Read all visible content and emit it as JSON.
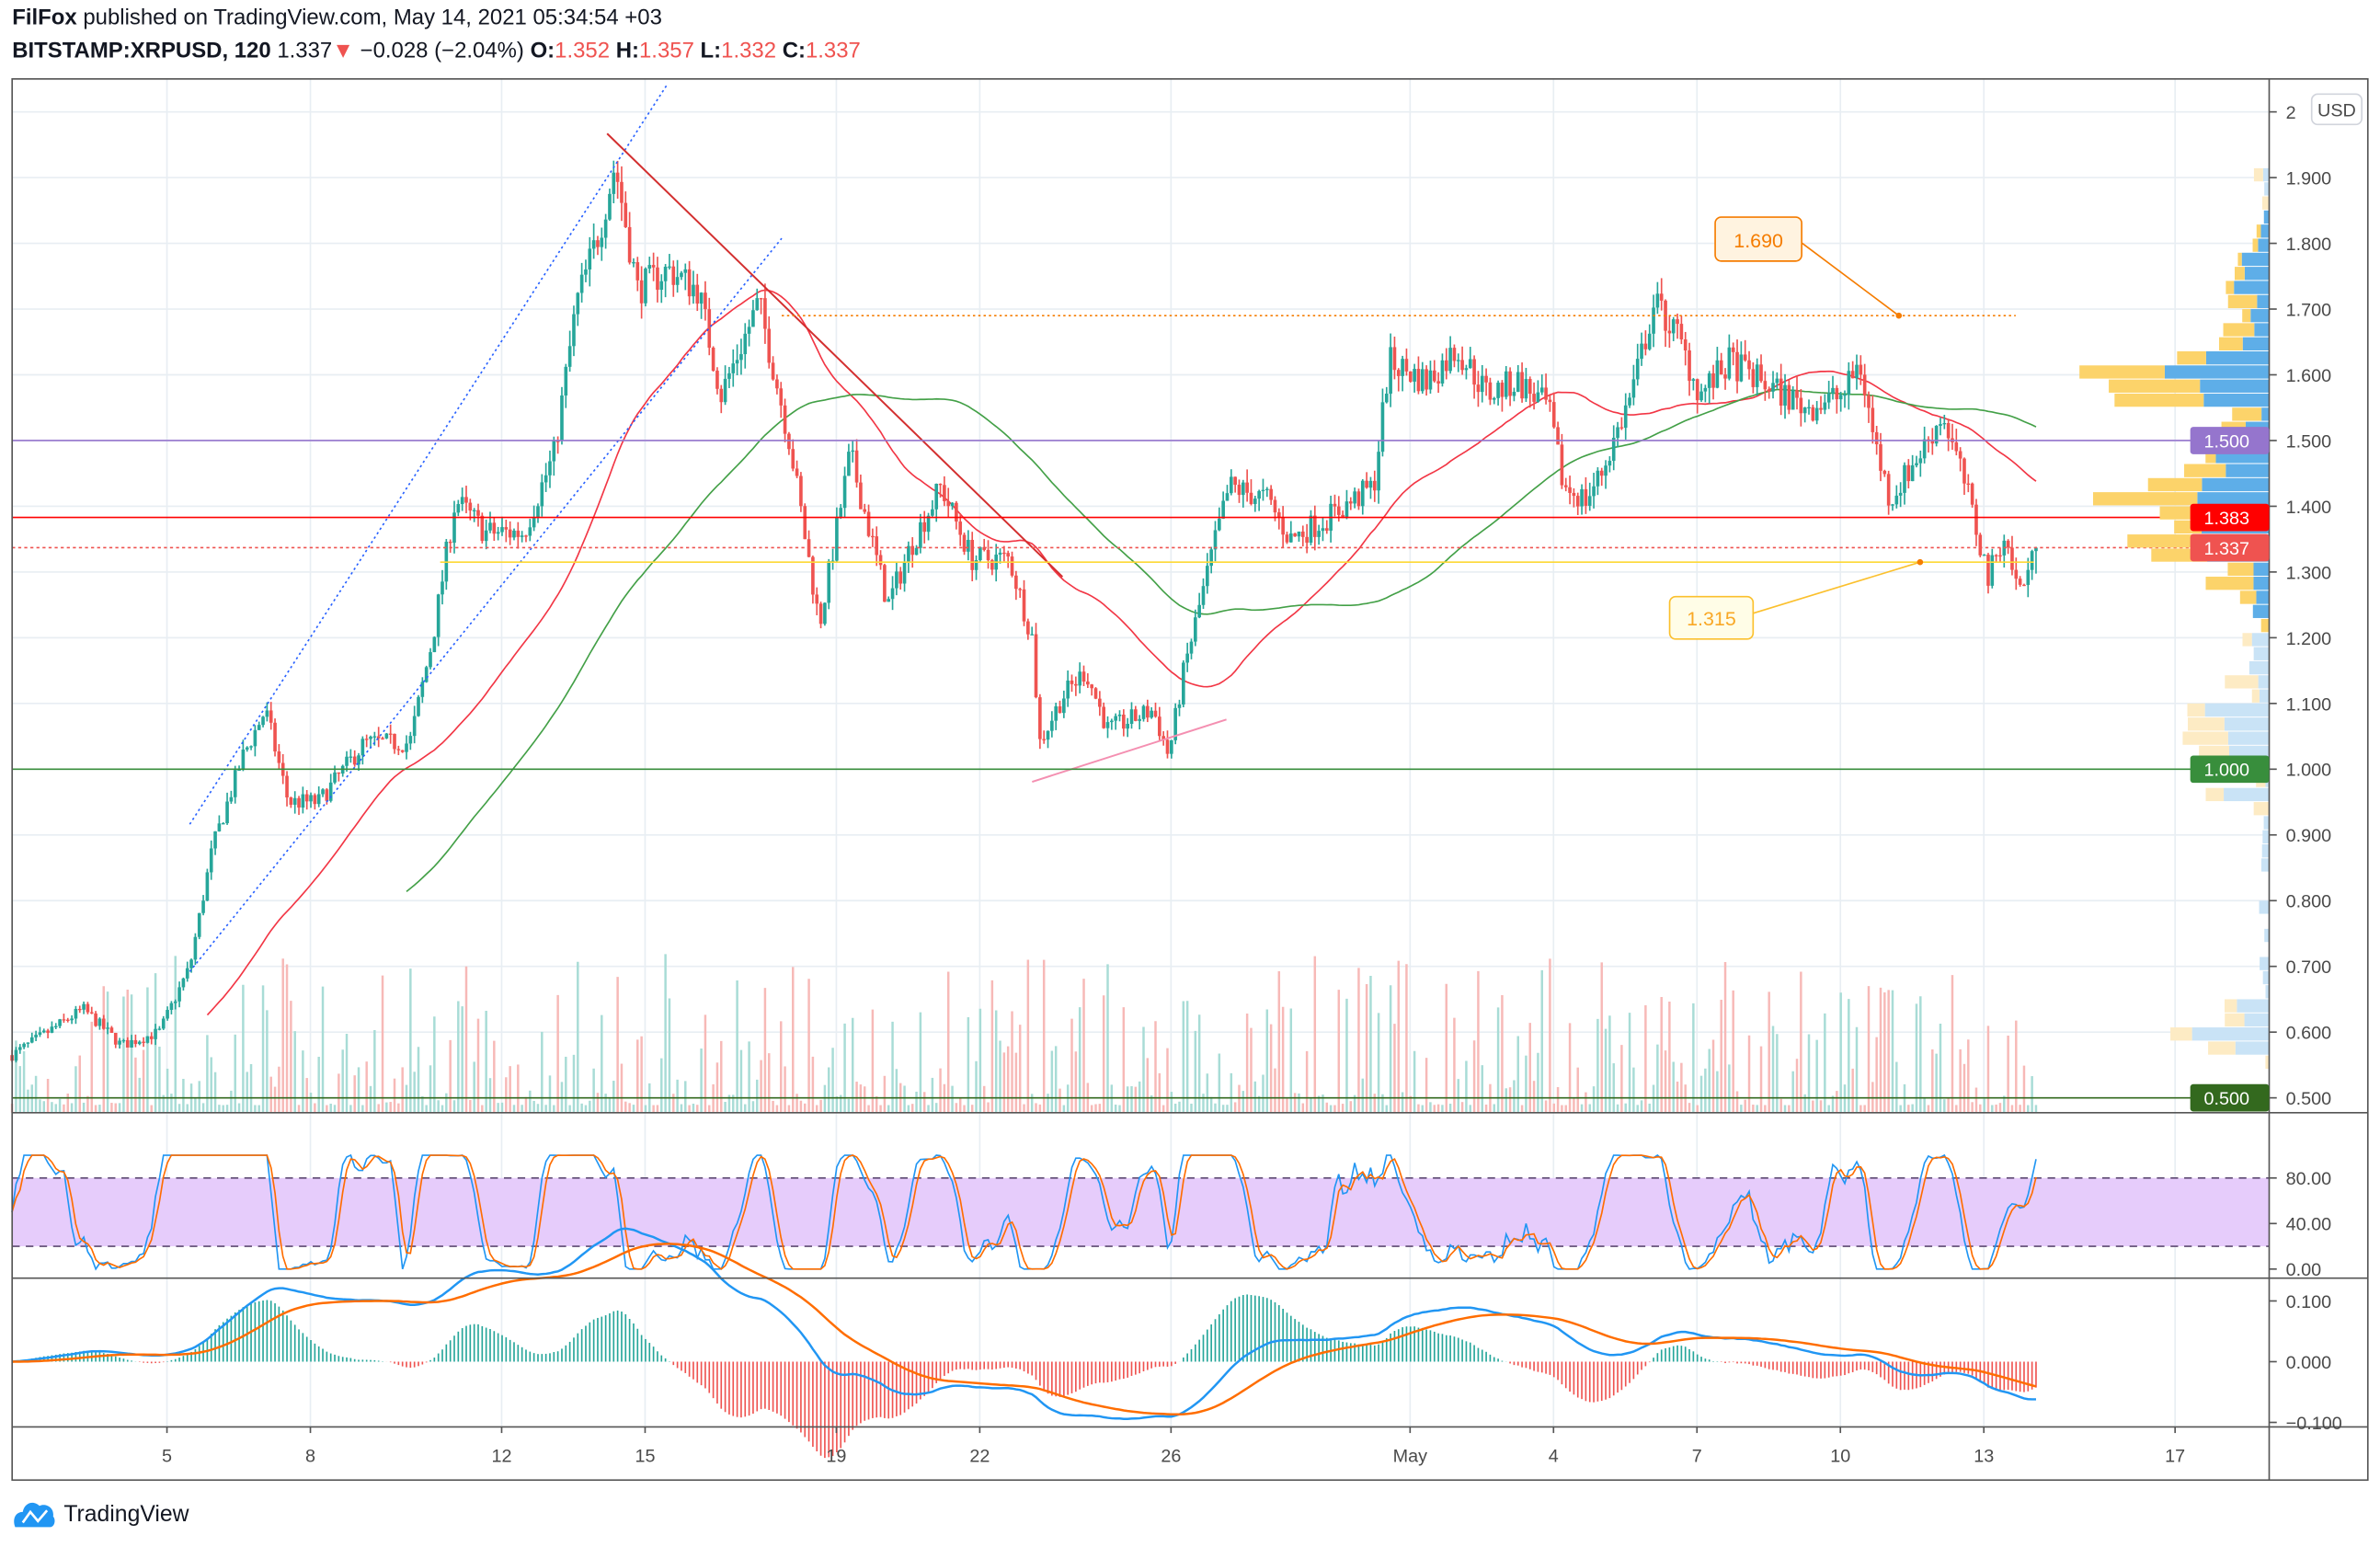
{
  "header": {
    "author": "FilFox",
    "published_text": "published on TradingView.com, May 14, 2021 05:34:54 +03",
    "symbol": "BITSTAMP:XRPUSD, 120",
    "last": "1.337",
    "change": "−0.028 (−2.04%)",
    "o_label": "O:",
    "o": "1.352",
    "h_label": "H:",
    "h": "1.357",
    "l_label": "L:",
    "l": "1.332",
    "c_label": "C:",
    "c": "1.337"
  },
  "currency_badge": "USD",
  "brand": "TradingView",
  "colors": {
    "up": "#26a69a",
    "down": "#ef5350",
    "accent": "#2962ff"
  },
  "chart_data": {
    "type": "candlestick",
    "title": "BITSTAMP:XRPUSD, 120",
    "x_unit": "day index (Apr 1 = 1, May 1 = 31)",
    "price_path": [
      [
        1.76,
        0.565
      ],
      [
        3.25,
        0.635
      ],
      [
        4.05,
        0.58
      ],
      [
        4.84,
        0.6
      ],
      [
        5.48,
        0.7
      ],
      [
        5.95,
        0.88
      ],
      [
        6.59,
        1.02
      ],
      [
        7.06,
        1.09
      ],
      [
        7.54,
        0.95
      ],
      [
        8.17,
        0.95
      ],
      [
        9.13,
        1.04
      ],
      [
        10.08,
        1.04
      ],
      [
        10.56,
        1.2
      ],
      [
        11.03,
        1.41
      ],
      [
        11.67,
        1.36
      ],
      [
        12.46,
        1.36
      ],
      [
        13.1,
        1.48
      ],
      [
        13.57,
        1.71
      ],
      [
        14.05,
        1.82
      ],
      [
        14.37,
        1.92
      ],
      [
        14.84,
        1.73
      ],
      [
        15.48,
        1.76
      ],
      [
        16.11,
        1.73
      ],
      [
        16.59,
        1.57
      ],
      [
        17.38,
        1.71
      ],
      [
        18.02,
        1.5
      ],
      [
        18.33,
        1.36
      ],
      [
        18.65,
        1.22
      ],
      [
        19.29,
        1.48
      ],
      [
        20.08,
        1.25
      ],
      [
        20.56,
        1.34
      ],
      [
        21.19,
        1.43
      ],
      [
        21.83,
        1.32
      ],
      [
        22.62,
        1.32
      ],
      [
        23.1,
        1.2
      ],
      [
        23.25,
        1.04
      ],
      [
        23.73,
        1.11
      ],
      [
        24.21,
        1.15
      ],
      [
        24.68,
        1.06
      ],
      [
        25.63,
        1.09
      ],
      [
        25.95,
        1.02
      ],
      [
        26.27,
        1.15
      ],
      [
        26.9,
        1.34
      ],
      [
        27.22,
        1.43
      ],
      [
        28.02,
        1.41
      ],
      [
        28.49,
        1.35
      ],
      [
        29.44,
        1.39
      ],
      [
        30.24,
        1.43
      ],
      [
        30.56,
        1.62
      ],
      [
        31.35,
        1.59
      ],
      [
        31.98,
        1.64
      ],
      [
        32.62,
        1.57
      ],
      [
        33.25,
        1.59
      ],
      [
        33.89,
        1.55
      ],
      [
        34.21,
        1.43
      ],
      [
        34.68,
        1.41
      ],
      [
        35.0,
        1.45
      ],
      [
        35.63,
        1.57
      ],
      [
        36.11,
        1.71
      ],
      [
        36.59,
        1.66
      ],
      [
        37.06,
        1.57
      ],
      [
        37.7,
        1.62
      ],
      [
        38.33,
        1.59
      ],
      [
        39.29,
        1.55
      ],
      [
        40.08,
        1.57
      ],
      [
        40.4,
        1.62
      ],
      [
        40.71,
        1.5
      ],
      [
        41.03,
        1.41
      ],
      [
        41.67,
        1.48
      ],
      [
        42.14,
        1.54
      ],
      [
        42.62,
        1.43
      ],
      [
        43.1,
        1.29
      ],
      [
        43.41,
        1.36
      ],
      [
        43.73,
        1.27
      ],
      [
        44.14,
        1.337
      ]
    ],
    "bar_interval_days": 0.08333,
    "x_ticks": [
      {
        "day": 5,
        "label": "5"
      },
      {
        "day": 8,
        "label": "8"
      },
      {
        "day": 12,
        "label": "12"
      },
      {
        "day": 15,
        "label": "15"
      },
      {
        "day": 19,
        "label": "19"
      },
      {
        "day": 22,
        "label": "22"
      },
      {
        "day": 26,
        "label": "26"
      },
      {
        "day": 31,
        "label": "May"
      },
      {
        "day": 34,
        "label": "4"
      },
      {
        "day": 37,
        "label": "7"
      },
      {
        "day": 40,
        "label": "10"
      },
      {
        "day": 43,
        "label": "13"
      },
      {
        "day": 47,
        "label": "17"
      }
    ],
    "y_ticks": [
      "2",
      "1.900",
      "1.800",
      "1.700",
      "1.600",
      "1.500",
      "1.400",
      "1.300",
      "1.200",
      "1.100",
      "1.000",
      "0.900",
      "0.800",
      "0.700",
      "0.600",
      "0.500"
    ],
    "ylim": [
      0.5,
      2.0
    ],
    "levels": [
      {
        "price": 1.5,
        "label": "1.500",
        "color": "#9575cd",
        "style": "solid"
      },
      {
        "price": 1.383,
        "label": "1.383",
        "color": "#ff0000",
        "style": "solid"
      },
      {
        "price": 1.337,
        "label": "1.337",
        "color": "#ef5350",
        "style": "dotted"
      },
      {
        "price": 1.0,
        "label": "1.000",
        "color": "#388e3c",
        "style": "solid"
      },
      {
        "price": 0.5,
        "label": "0.500",
        "color": "#33691e",
        "style": "solid"
      }
    ],
    "annotations": [
      {
        "label": "1.690",
        "color": "#f57c00",
        "price": 1.69
      },
      {
        "label": "1.315",
        "color": "#fbc02d",
        "price": 1.315
      }
    ],
    "rsi_pane": {
      "type": "stoch-rsi",
      "y_ticks": [
        "80.00",
        "40.00",
        "0.00"
      ],
      "upper": 80,
      "lower": 20
    },
    "macd_pane": {
      "type": "macd",
      "y_ticks": [
        "0.100",
        "0.000",
        "−0.100"
      ]
    }
  }
}
